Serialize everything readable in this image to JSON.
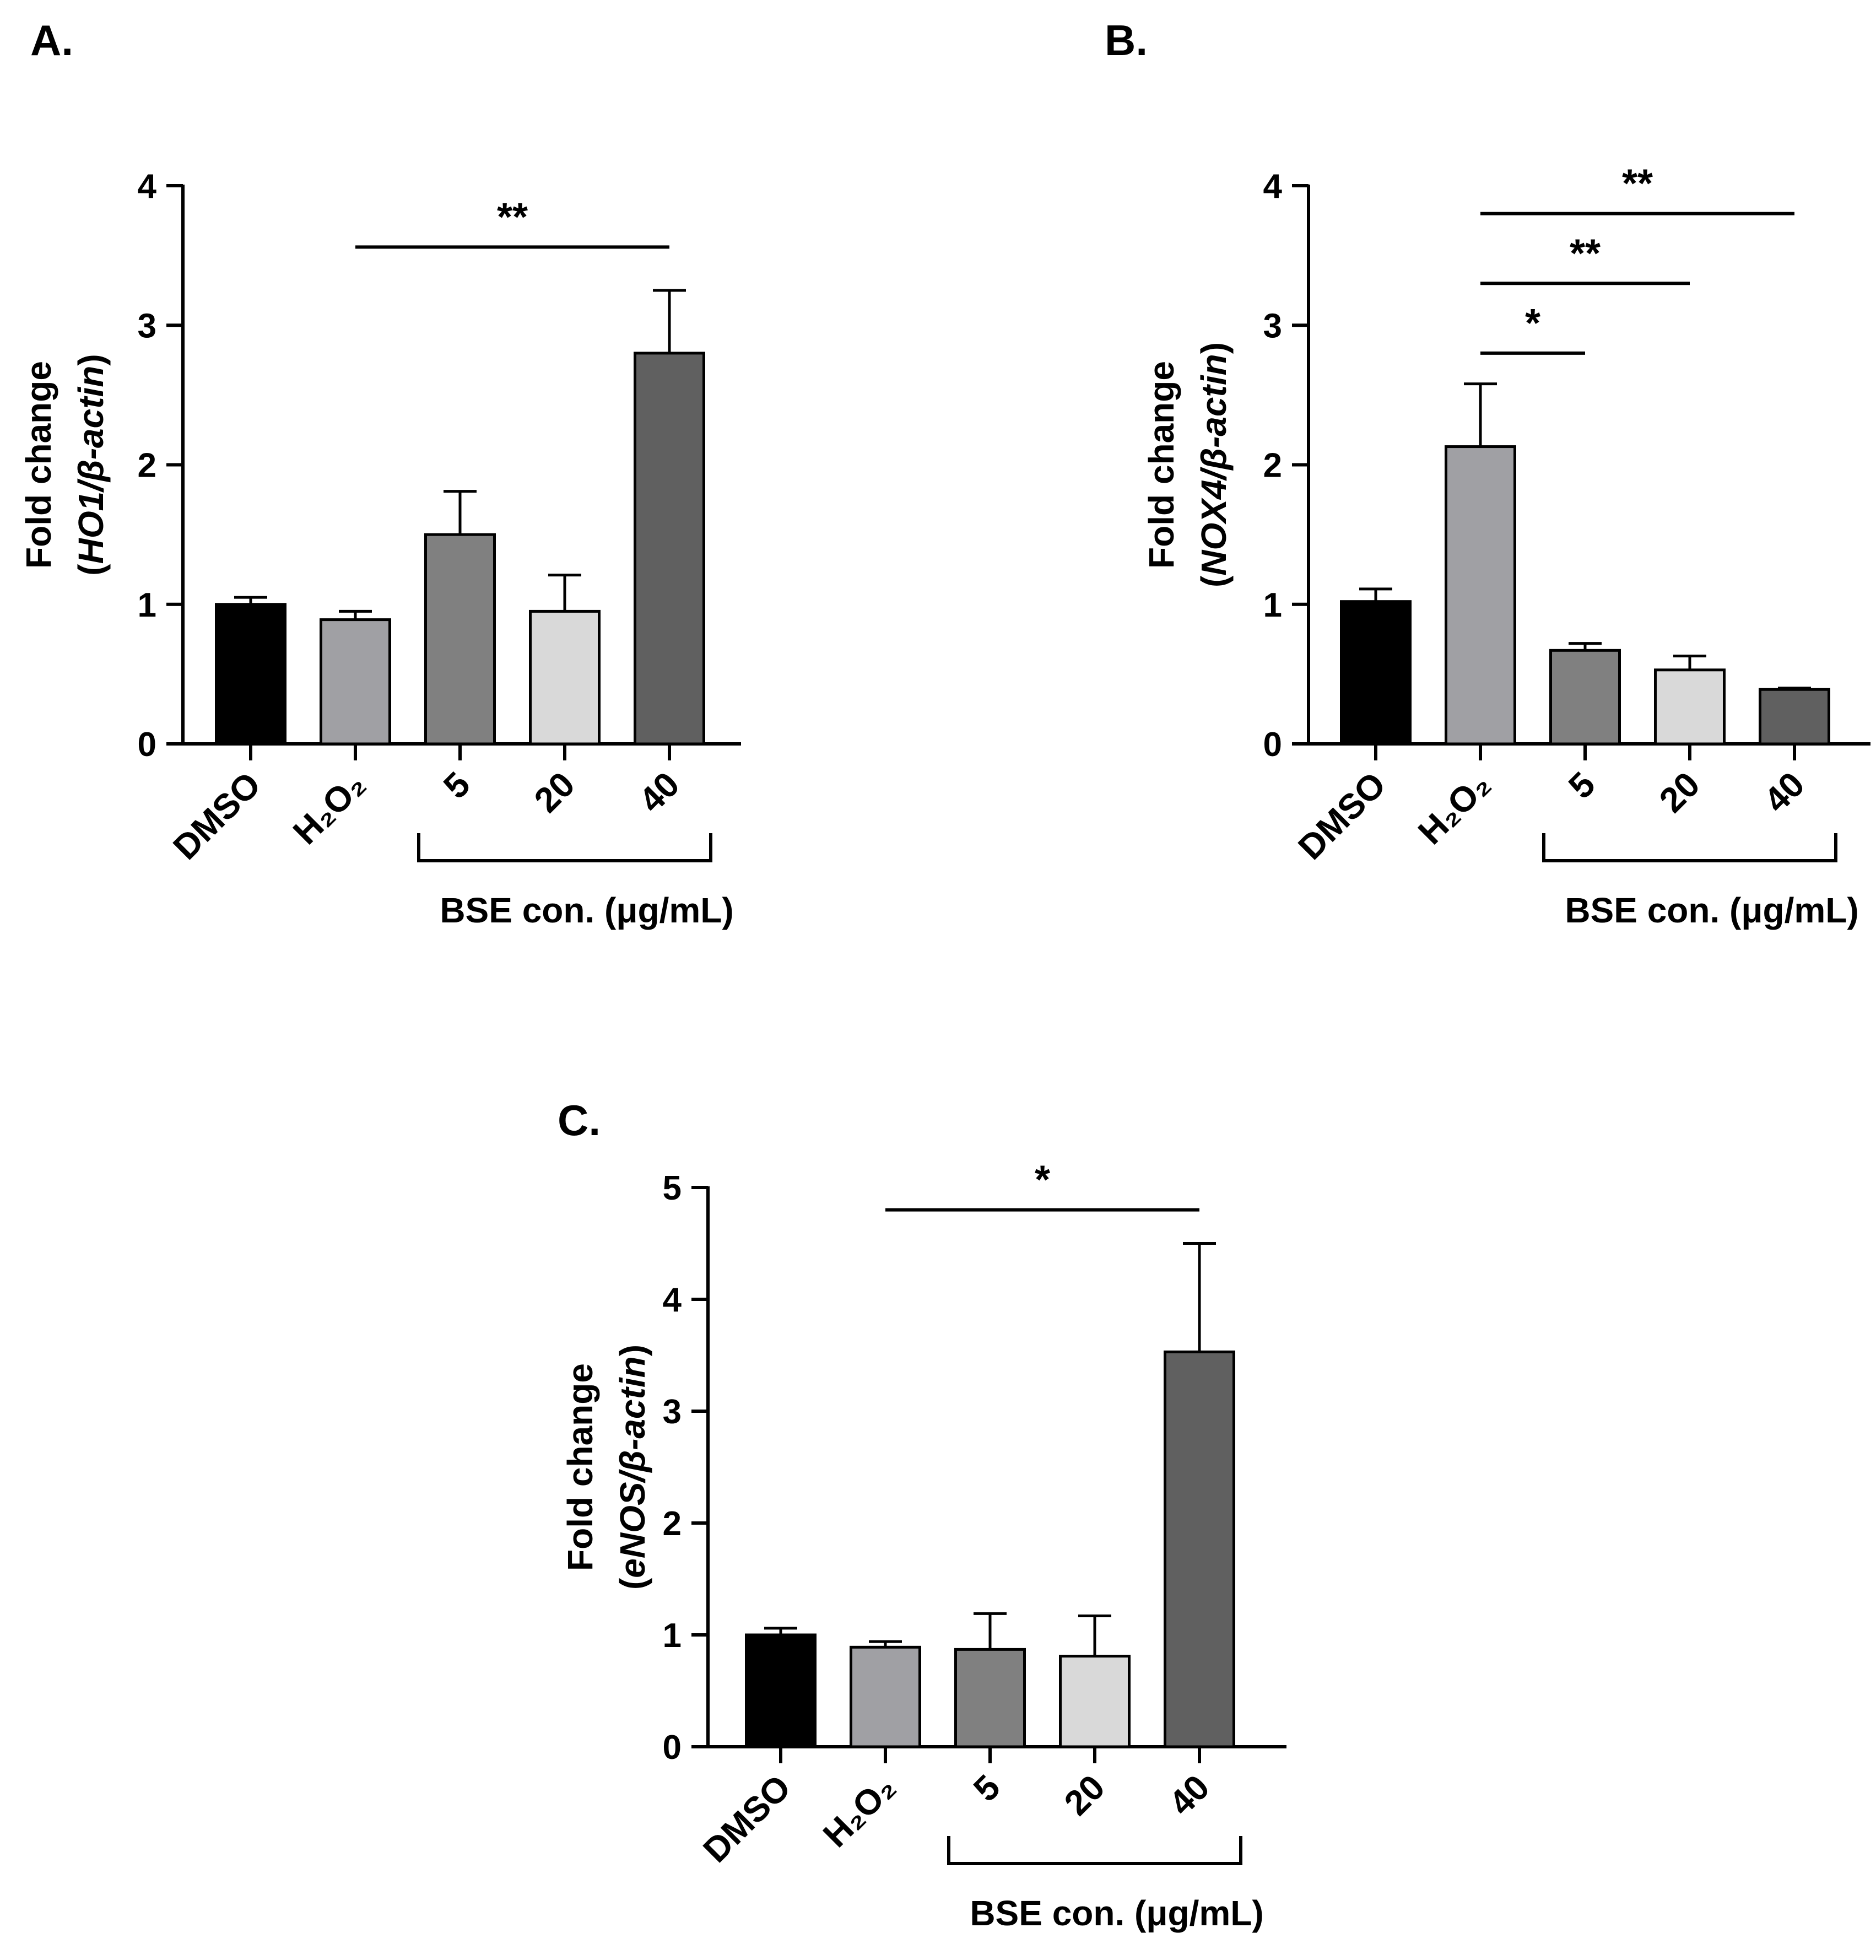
{
  "chart_data": [
    {
      "type": "bar",
      "panel_label": "A.",
      "ylabel": "Fold change",
      "ylabel_gene": "HO1",
      "ylabel_ref": "β-actin",
      "ylim": [
        0,
        4
      ],
      "yticks": [
        "0",
        "1",
        "2",
        "3",
        "4"
      ],
      "categories": [
        "DMSO",
        "H₂O₂",
        "5",
        "20",
        "40"
      ],
      "values": [
        1.0,
        0.89,
        1.5,
        0.95,
        2.8
      ],
      "errors": [
        0.05,
        0.06,
        0.31,
        0.26,
        0.45
      ],
      "colors": [
        "#000000",
        "#a0a0a4",
        "#808080",
        "#d9d9d9",
        "#606060"
      ],
      "group_label": "BSE con. (μg/mL)",
      "group_indices": [
        2,
        4
      ],
      "significance": [
        {
          "from": 1,
          "to": 4,
          "y": 3.56,
          "label": "**"
        }
      ]
    },
    {
      "type": "bar",
      "panel_label": "B.",
      "ylabel": "Fold change",
      "ylabel_gene": "NOX4",
      "ylabel_ref": "β-actin",
      "ylim": [
        0,
        4
      ],
      "yticks": [
        "0",
        "1",
        "2",
        "3",
        "4"
      ],
      "categories": [
        "DMSO",
        "H₂O₂",
        "5",
        "20",
        "40"
      ],
      "values": [
        1.02,
        2.13,
        0.67,
        0.53,
        0.39
      ],
      "errors": [
        0.09,
        0.45,
        0.05,
        0.1,
        0.01
      ],
      "colors": [
        "#000000",
        "#a0a0a4",
        "#808080",
        "#d9d9d9",
        "#606060"
      ],
      "group_label": "BSE con. (μg/mL)",
      "group_indices": [
        2,
        4
      ],
      "significance": [
        {
          "from": 1,
          "to": 2,
          "y": 2.8,
          "label": "*"
        },
        {
          "from": 1,
          "to": 3,
          "y": 3.3,
          "label": "**"
        },
        {
          "from": 1,
          "to": 4,
          "y": 3.8,
          "label": "**"
        }
      ]
    },
    {
      "type": "bar",
      "panel_label": "C.",
      "ylabel": "Fold change",
      "ylabel_gene": "eNOS",
      "ylabel_ref": "β-actin",
      "ylim": [
        0,
        5
      ],
      "yticks": [
        "0",
        "1",
        "2",
        "3",
        "4",
        "5"
      ],
      "categories": [
        "DMSO",
        "H₂O₂",
        "5",
        "20",
        "40"
      ],
      "values": [
        1.0,
        0.89,
        0.87,
        0.81,
        3.53
      ],
      "errors": [
        0.06,
        0.05,
        0.32,
        0.36,
        0.97
      ],
      "colors": [
        "#000000",
        "#a0a0a4",
        "#808080",
        "#d9d9d9",
        "#606060"
      ],
      "group_label": "BSE con. (μg/mL)",
      "group_indices": [
        2,
        4
      ],
      "significance": [
        {
          "from": 1,
          "to": 4,
          "y": 4.8,
          "label": "*"
        }
      ]
    }
  ]
}
